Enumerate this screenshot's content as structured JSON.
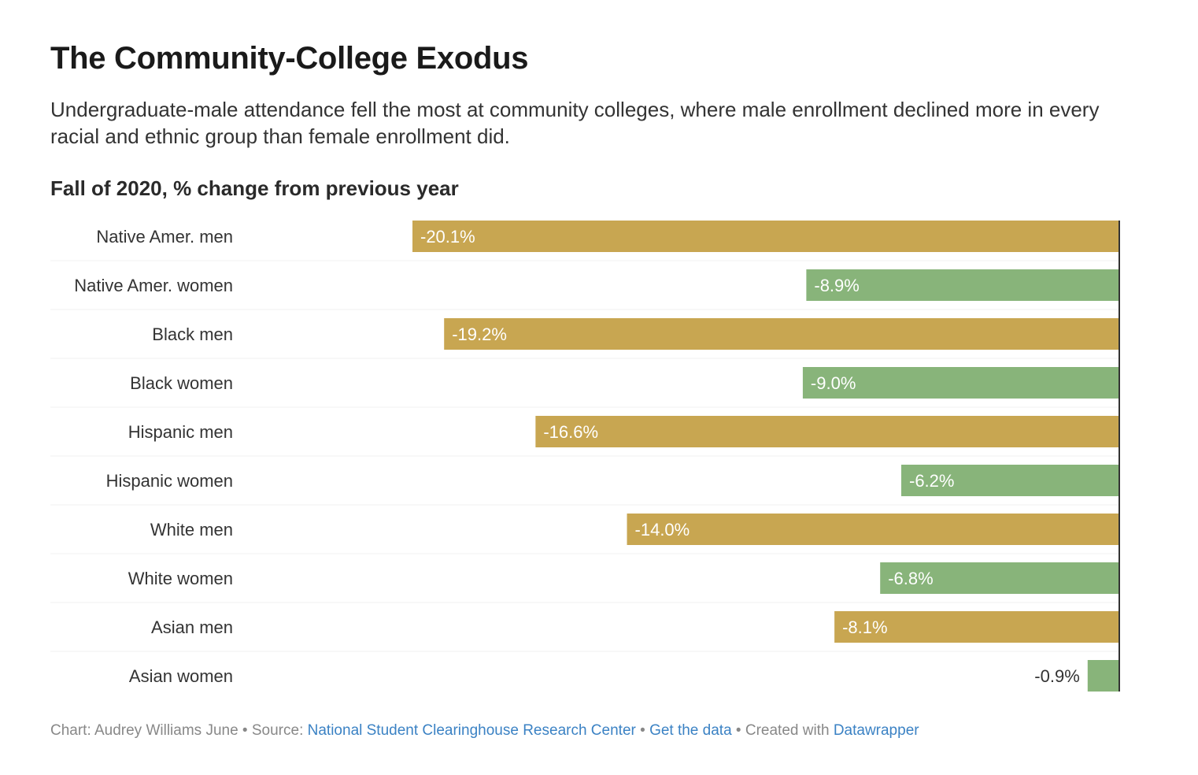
{
  "header": {
    "title": "The Community-College Exodus",
    "subtitle": "Undergraduate-male attendance fell the most at community colleges, where male enrollment  declined more in every racial and ethnic group than female enrollment did.",
    "unit_label": "Fall of 2020, % change from previous year"
  },
  "chart_data": {
    "type": "bar",
    "orientation": "horizontal",
    "categories": [
      "Native Amer. men",
      "Native Amer. women",
      "Black men",
      "Black women",
      "Hispanic men",
      "Hispanic women",
      "White men",
      "White women",
      "Asian men",
      "Asian women"
    ],
    "values": [
      -20.1,
      -8.9,
      -19.2,
      -9.0,
      -16.6,
      -6.2,
      -14.0,
      -6.8,
      -8.1,
      -0.9
    ],
    "value_labels": [
      "-20.1%",
      "-8.9%",
      "-19.2%",
      "-9.0%",
      "-16.6%",
      "-6.2%",
      "-14.0%",
      "-6.8%",
      "-8.1%",
      "-0.9%"
    ],
    "colors": [
      "#c8a651",
      "#88b47a",
      "#c8a651",
      "#88b47a",
      "#c8a651",
      "#88b47a",
      "#c8a651",
      "#88b47a",
      "#c8a651",
      "#88b47a"
    ],
    "xlim": [
      -20.1,
      0
    ]
  },
  "footer": {
    "chart_prefix": "Chart: ",
    "author": "Audrey Williams June",
    "sep1": " • ",
    "source_prefix": "Source: ",
    "source": "National Student Clearinghouse Research Center",
    "sep2": " • ",
    "get_data": "Get the data",
    "sep3": " • ",
    "created_prefix": "Created with ",
    "created_tool": "Datawrapper"
  }
}
